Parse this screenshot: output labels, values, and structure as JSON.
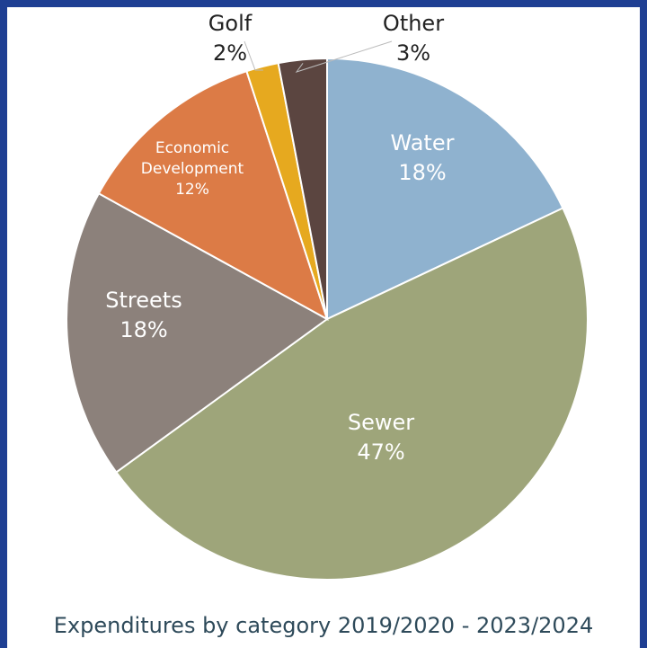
{
  "chart_data": {
    "type": "pie",
    "title": "Expenditures by category 2019/2020 - 2023/2024",
    "slices": [
      {
        "label": [
          "Water"
        ],
        "value": 18,
        "value_label": "18%",
        "color": "#8fb2cf",
        "label_color": "#ffffff"
      },
      {
        "label": [
          "Sewer"
        ],
        "value": 47,
        "value_label": "47%",
        "color": "#9ea57a",
        "label_color": "#ffffff"
      },
      {
        "label": [
          "Streets"
        ],
        "value": 18,
        "value_label": "18%",
        "color": "#8c817b",
        "label_color": "#ffffff"
      },
      {
        "label": [
          "Economic",
          "Development"
        ],
        "value": 12,
        "value_label": "12%",
        "color": "#dc7b46",
        "label_color": "#ffffff"
      },
      {
        "label": [
          "Golf"
        ],
        "value": 2,
        "value_label": "2%",
        "color": "#e6a91f",
        "label_color": "#222222"
      },
      {
        "label": [
          "Other"
        ],
        "value": 3,
        "value_label": "3%",
        "color": "#5b4540",
        "label_color": "#222222"
      }
    ]
  }
}
